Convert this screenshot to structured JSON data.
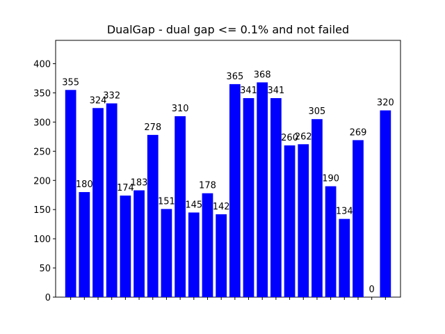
{
  "chart_data": {
    "type": "bar",
    "title": "DualGap - dual gap <= 0.1% and not failed",
    "categories": [
      null,
      null,
      null,
      null,
      null,
      null,
      null,
      null,
      null,
      null,
      null,
      null,
      null,
      null,
      null,
      null,
      null,
      null,
      null,
      null,
      null,
      null,
      null,
      null
    ],
    "values": [
      355,
      180,
      324,
      332,
      174,
      183,
      278,
      151,
      310,
      145,
      178,
      142,
      365,
      341,
      368,
      341,
      260,
      262,
      305,
      190,
      134,
      269,
      0,
      320
    ],
    "color": "#0000ff",
    "ylim": [
      0,
      440
    ],
    "yticks": [
      0,
      50,
      100,
      150,
      200,
      250,
      300,
      350,
      400
    ],
    "grid": false
  }
}
